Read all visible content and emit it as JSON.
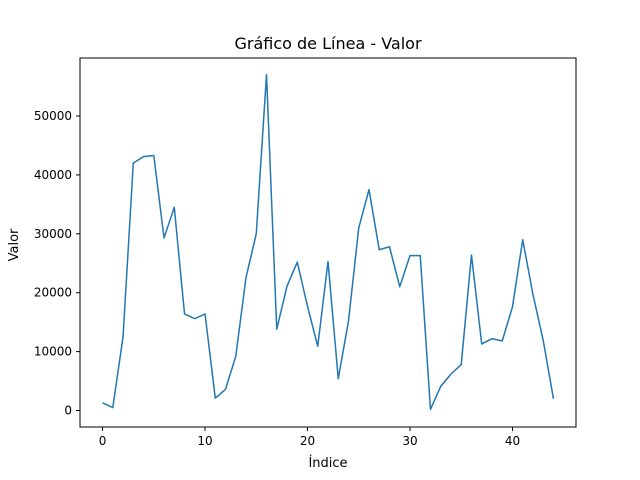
{
  "chart_data": {
    "type": "line",
    "title": "Gráfico de Línea - Valor",
    "xlabel": "Índice",
    "ylabel": "Valor",
    "xlim": [
      -2.2,
      46.2
    ],
    "ylim": [
      -2800,
      59850
    ],
    "grid": false,
    "xticks": [
      0,
      10,
      20,
      30,
      40
    ],
    "yticks": [
      0,
      10000,
      20000,
      30000,
      40000,
      50000
    ],
    "series": [
      {
        "color": "#1f77b4",
        "x": [
          0,
          1,
          2,
          3,
          4,
          5,
          6,
          7,
          8,
          9,
          10,
          11,
          12,
          13,
          14,
          15,
          16,
          17,
          18,
          19,
          20,
          21,
          22,
          23,
          24,
          25,
          26,
          27,
          28,
          29,
          30,
          31,
          32,
          33,
          34,
          35,
          36,
          37,
          38,
          39,
          40,
          41,
          42,
          43,
          44
        ],
        "values": [
          1300,
          500,
          12500,
          42000,
          43100,
          43300,
          29300,
          34500,
          16400,
          15600,
          16400,
          2100,
          3600,
          9200,
          22600,
          30000,
          57000,
          13800,
          21100,
          25200,
          17700,
          10900,
          25300,
          5400,
          15200,
          31000,
          37500,
          27300,
          27800,
          21000,
          26300,
          26300,
          200,
          4100,
          6200,
          7800,
          26400,
          11300,
          12200,
          11800,
          17600,
          29000,
          19700,
          11900,
          2000
        ]
      }
    ]
  }
}
